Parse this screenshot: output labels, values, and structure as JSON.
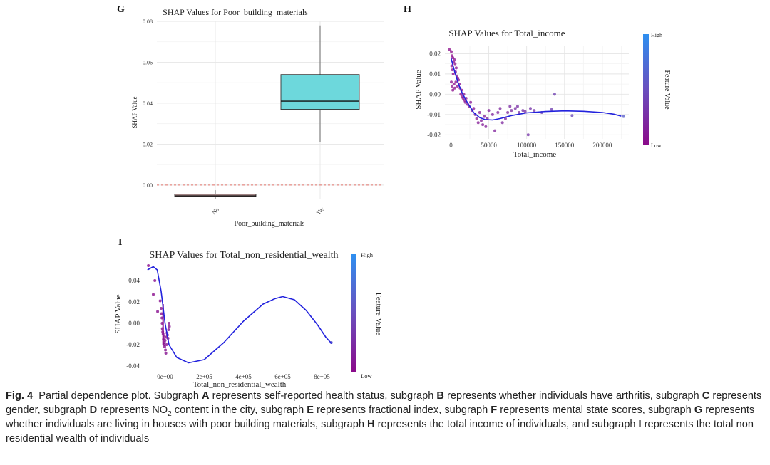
{
  "panels": {
    "G": {
      "letter": "G",
      "title": "SHAP Values for Poor_building_materials",
      "ylabel": "SHAP Value",
      "xlabel": "Poor_building_materials",
      "yticks": [
        "0.00",
        "0.02",
        "0.04",
        "0.06",
        "0.08"
      ],
      "xticks": [
        "No",
        "Yes"
      ]
    },
    "H": {
      "letter": "H",
      "title": "SHAP Values for Total_income",
      "ylabel": "SHAP Value",
      "xlabel": "Total_income",
      "yticks": [
        "-0.02",
        "-0.01",
        "0.00",
        "0.01",
        "0.02"
      ],
      "xticks": [
        "0",
        "50000",
        "100000",
        "150000",
        "200000"
      ],
      "legend_title": "Feature Value",
      "legend_high": "High",
      "legend_low": "Low"
    },
    "I": {
      "letter": "I",
      "title": "SHAP Values for Total_non_residential_wealth",
      "ylabel": "SHAP Value",
      "xlabel": "Total_non_residential_wealth",
      "yticks": [
        "-0.04",
        "-0.02",
        "0.00",
        "0.02",
        "0.04"
      ],
      "xticks": [
        "0e+00",
        "2e+05",
        "4e+05",
        "6e+05",
        "8e+05"
      ],
      "legend_title": "Feature Value",
      "legend_high": "High",
      "legend_low": "Low"
    }
  },
  "caption": {
    "fig_label": "Fig. 4",
    "lead": "Partial dependence plot. Subgraph ",
    "parts": [
      [
        "A",
        " represents self-reported health status, subgraph "
      ],
      [
        "B",
        " represents whether individuals have arthritis, subgraph "
      ],
      [
        "C",
        " represents gender, subgraph "
      ],
      [
        "D",
        " represents NO"
      ]
    ],
    "no2_sub": "2",
    "after_no2": " content in the city, subgraph ",
    "parts2": [
      [
        "E",
        " represents fractional index, subgraph "
      ],
      [
        "F",
        " represents mental state scores, subgraph "
      ],
      [
        "G",
        " represents whether individuals are living in houses with poor building materials, subgraph "
      ],
      [
        "H",
        " represents the total income of individuals, and subgraph "
      ],
      [
        "I",
        " represents the total non residential wealth of individuals"
      ]
    ]
  },
  "chart_data": [
    {
      "panel": "G",
      "type": "box",
      "title": "SHAP Values for Poor_building_materials",
      "xlabel": "Poor_building_materials",
      "ylabel": "SHAP Value",
      "ylim": [
        -0.007,
        0.08
      ],
      "categories": [
        "No",
        "Yes"
      ],
      "boxes": [
        {
          "category": "No",
          "min": -0.0068,
          "q1": -0.0058,
          "median": -0.0053,
          "q3": -0.0045,
          "max": -0.0025,
          "color": "#c9a3a3"
        },
        {
          "category": "Yes",
          "min": 0.021,
          "q1": 0.037,
          "median": 0.041,
          "q3": 0.054,
          "max": 0.078,
          "color": "#6dd8dc"
        }
      ],
      "reference_line": {
        "y": 0.0,
        "style": "dashed",
        "color": "#e0736b"
      },
      "grid": true
    },
    {
      "panel": "H",
      "type": "scatter",
      "title": "SHAP Values for Total_income",
      "xlabel": "Total_income",
      "ylabel": "SHAP Value",
      "xlim": [
        -8000,
        235000
      ],
      "ylim": [
        -0.022,
        0.024
      ],
      "grid": true,
      "legend": "right",
      "smooth_curve": [
        [
          0,
          0.018
        ],
        [
          5000,
          0.011
        ],
        [
          10000,
          0.005
        ],
        [
          15000,
          0.0005
        ],
        [
          20000,
          -0.003
        ],
        [
          25000,
          -0.006
        ],
        [
          30000,
          -0.009
        ],
        [
          38000,
          -0.0115
        ],
        [
          45000,
          -0.0125
        ],
        [
          55000,
          -0.0127
        ],
        [
          65000,
          -0.012
        ],
        [
          80000,
          -0.0105
        ],
        [
          100000,
          -0.0092
        ],
        [
          125000,
          -0.0085
        ],
        [
          150000,
          -0.0082
        ],
        [
          175000,
          -0.0084
        ],
        [
          200000,
          -0.009
        ],
        [
          215000,
          -0.0098
        ],
        [
          225000,
          -0.0108
        ]
      ],
      "points": [
        [
          -2000,
          0.022
        ],
        [
          500,
          0.021
        ],
        [
          1500,
          0.019
        ],
        [
          2500,
          0.018
        ],
        [
          3500,
          0.016
        ],
        [
          1000,
          0.014
        ],
        [
          4500,
          0.017
        ],
        [
          5500,
          0.015
        ],
        [
          2000,
          0.012
        ],
        [
          3000,
          0.01
        ],
        [
          6000,
          0.011
        ],
        [
          7000,
          0.013
        ],
        [
          8000,
          0.009
        ],
        [
          9000,
          0.008
        ],
        [
          500,
          0.006
        ],
        [
          1500,
          0.004
        ],
        [
          2500,
          0.002
        ],
        [
          4000,
          0.005
        ],
        [
          5000,
          0.003
        ],
        [
          6500,
          0.006
        ],
        [
          8500,
          0.004
        ],
        [
          10000,
          0.007
        ],
        [
          11000,
          0.005
        ],
        [
          12000,
          0.003
        ],
        [
          13000,
          0.0
        ],
        [
          14000,
          0.002
        ],
        [
          15000,
          -0.001
        ],
        [
          16000,
          -0.002
        ],
        [
          17000,
          0.0
        ],
        [
          18000,
          -0.003
        ],
        [
          19000,
          -0.004
        ],
        [
          20000,
          -0.002
        ],
        [
          22000,
          -0.005
        ],
        [
          24000,
          -0.006
        ],
        [
          26000,
          -0.004
        ],
        [
          28000,
          -0.008
        ],
        [
          30000,
          -0.007
        ],
        [
          32000,
          -0.01
        ],
        [
          34000,
          -0.012
        ],
        [
          36000,
          -0.014
        ],
        [
          38000,
          -0.009
        ],
        [
          40000,
          -0.013
        ],
        [
          42000,
          -0.015
        ],
        [
          44000,
          -0.011
        ],
        [
          46000,
          -0.016
        ],
        [
          48000,
          -0.012
        ],
        [
          50000,
          -0.008
        ],
        [
          55000,
          -0.01
        ],
        [
          58000,
          -0.018
        ],
        [
          62000,
          -0.009
        ],
        [
          65000,
          -0.007
        ],
        [
          68000,
          -0.014
        ],
        [
          72000,
          -0.012
        ],
        [
          75000,
          -0.009
        ],
        [
          78000,
          -0.006
        ],
        [
          80000,
          -0.008
        ],
        [
          85000,
          -0.007
        ],
        [
          88000,
          -0.006
        ],
        [
          90000,
          -0.009
        ],
        [
          95000,
          -0.008
        ],
        [
          98000,
          -0.0085
        ],
        [
          102000,
          -0.02
        ],
        [
          105000,
          -0.007
        ],
        [
          110000,
          -0.008
        ],
        [
          120000,
          -0.009
        ],
        [
          133000,
          -0.0075
        ],
        [
          137000,
          -0.0
        ],
        [
          160000,
          -0.0105
        ],
        [
          228000,
          -0.011
        ]
      ]
    },
    {
      "panel": "I",
      "type": "scatter",
      "title": "SHAP Values for Total_non_residential_wealth",
      "xlabel": "Total_non_residential_wealth",
      "ylabel": "SHAP Value",
      "xlim": [
        -100000,
        860000
      ],
      "ylim": [
        -0.044,
        0.056
      ],
      "grid": false,
      "legend": "right",
      "smooth_curve": [
        [
          -90000,
          0.05
        ],
        [
          -60000,
          0.053
        ],
        [
          -40000,
          0.05
        ],
        [
          -20000,
          0.03
        ],
        [
          0,
          0.0
        ],
        [
          20000,
          -0.02
        ],
        [
          60000,
          -0.032
        ],
        [
          120000,
          -0.037
        ],
        [
          200000,
          -0.034
        ],
        [
          300000,
          -0.018
        ],
        [
          400000,
          0.002
        ],
        [
          500000,
          0.018
        ],
        [
          560000,
          0.023
        ],
        [
          600000,
          0.025
        ],
        [
          660000,
          0.022
        ],
        [
          720000,
          0.012
        ],
        [
          780000,
          -0.002
        ],
        [
          820000,
          -0.013
        ],
        [
          850000,
          -0.019
        ]
      ],
      "points": [
        [
          -85000,
          0.054
        ],
        [
          -52000,
          0.04
        ],
        [
          -60000,
          0.027
        ],
        [
          -38000,
          0.011
        ],
        [
          -25000,
          0.021
        ],
        [
          -20000,
          0.014
        ],
        [
          -18000,
          0.009
        ],
        [
          -16000,
          0.005
        ],
        [
          -15000,
          0.0
        ],
        [
          -14000,
          -0.005
        ],
        [
          -12000,
          -0.008
        ],
        [
          -10000,
          -0.01
        ],
        [
          -8000,
          -0.015
        ],
        [
          -6000,
          -0.012
        ],
        [
          -5000,
          -0.02
        ],
        [
          -3000,
          -0.018
        ],
        [
          -2000,
          -0.022
        ],
        [
          0,
          -0.016
        ],
        [
          2000,
          -0.025
        ],
        [
          4000,
          -0.028
        ],
        [
          6000,
          -0.013
        ],
        [
          8000,
          -0.02
        ],
        [
          10000,
          -0.009
        ],
        [
          12000,
          -0.011
        ],
        [
          15000,
          -0.014
        ],
        [
          18000,
          -0.006
        ],
        [
          20000,
          0.0
        ],
        [
          22000,
          -0.003
        ],
        [
          848000,
          -0.018
        ]
      ]
    }
  ]
}
